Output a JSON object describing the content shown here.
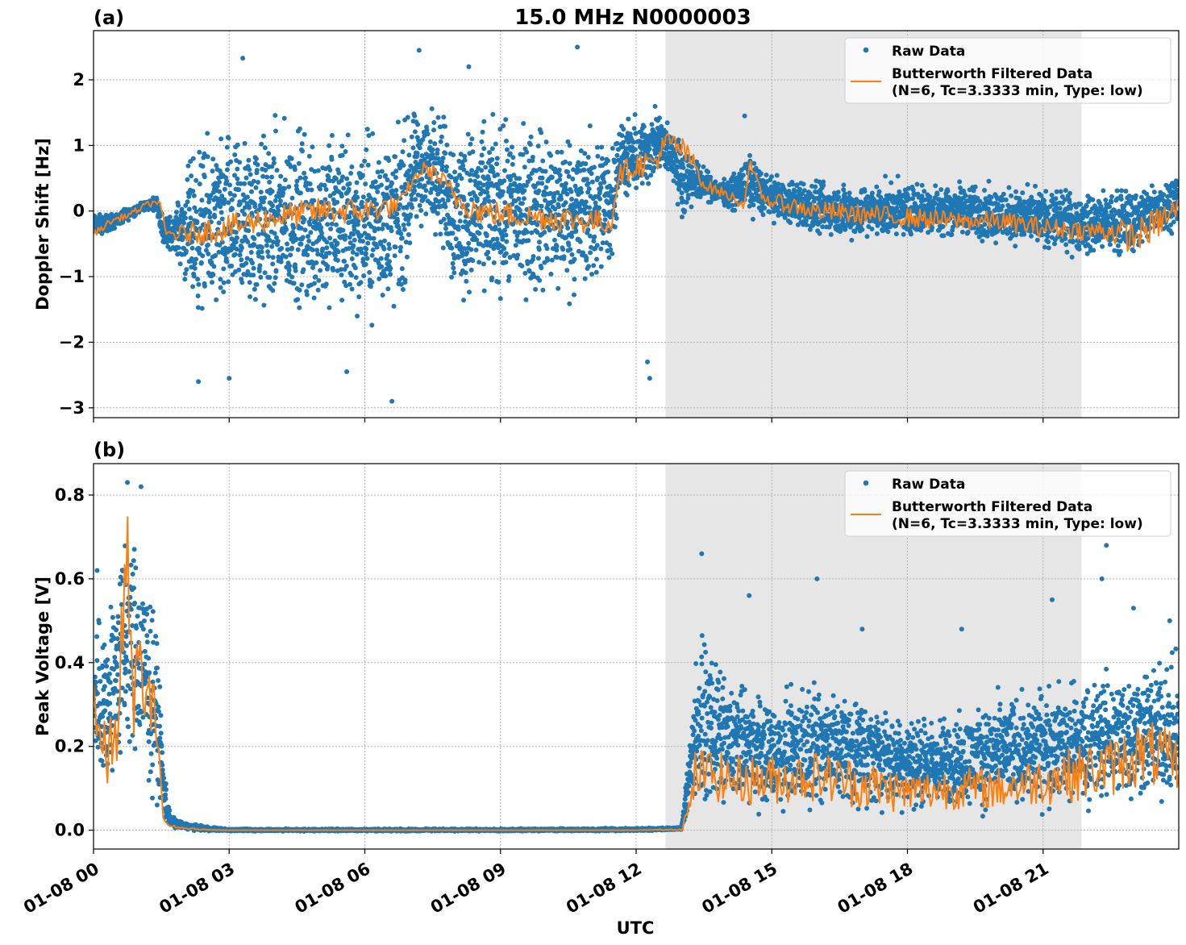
{
  "figure_title": "15.0 MHz N0000003",
  "xlabel": "UTC",
  "x_tick_labels": [
    "01-08 00",
    "01-08 03",
    "01-08 06",
    "01-08 09",
    "01-08 12",
    "01-08 15",
    "01-08 18",
    "01-08 21"
  ],
  "colors": {
    "raw": "#1f77b4",
    "filtered": "#ff7f0e",
    "shade": "#e6e6e6",
    "grid": "#b0b0b0"
  },
  "legend": {
    "raw_label": "Raw Data",
    "filtered_label_line1": "Butterworth Filtered Data",
    "filtered_label_line2": "(N=6, Tc=3.3333 min, Type: low)",
    "placement": "top-right"
  },
  "chart_data": [
    {
      "type": "scatter",
      "panel_label": "(a)",
      "ylabel": "Doppler Shift [Hz]",
      "xlim_hours": [
        0,
        24
      ],
      "ylim": [
        -3.15,
        2.75
      ],
      "y_ticks": [
        -3,
        -2,
        -1,
        0,
        1,
        2
      ],
      "y_tick_labels": [
        "−3",
        "−2",
        "−1",
        "0",
        "1",
        "2"
      ],
      "grid": true,
      "shaded_region_hours": [
        12.65,
        21.85
      ],
      "series": [
        {
          "name": "Raw Data",
          "style": "points",
          "envelope_hours": [
            0,
            0.5,
            1.0,
            1.4,
            1.55,
            1.8,
            2.2,
            3.0,
            4.0,
            5.0,
            6.0,
            6.8,
            7.1,
            7.6,
            8.0,
            8.5,
            9.0,
            10.0,
            11.0,
            11.45,
            11.6,
            12.0,
            12.5,
            12.85,
            13.0,
            13.3,
            13.5,
            14.0,
            14.5,
            15.0,
            16.0,
            17.0,
            18.0,
            19.0,
            20.0,
            21.0,
            22.0,
            23.0,
            24.0
          ],
          "envelope_low": [
            -0.45,
            -0.3,
            -0.05,
            0.0,
            -0.7,
            -0.65,
            -1.9,
            -2.1,
            -2.0,
            -2.0,
            -2.0,
            -1.9,
            -0.6,
            -0.5,
            -1.8,
            -1.7,
            -1.7,
            -1.7,
            -1.6,
            -1.3,
            0.0,
            0.0,
            0.4,
            0.3,
            -0.3,
            0.0,
            0.1,
            0.0,
            -0.15,
            -0.2,
            -0.5,
            -0.55,
            -0.5,
            -0.5,
            -0.6,
            -0.7,
            -0.8,
            -0.8,
            -0.3
          ],
          "envelope_high": [
            0.0,
            0.0,
            0.15,
            0.25,
            0.0,
            0.05,
            1.3,
            1.6,
            1.7,
            1.7,
            1.6,
            1.7,
            1.8,
            1.9,
            1.7,
            1.7,
            1.7,
            1.7,
            1.6,
            1.4,
            1.5,
            1.6,
            1.7,
            1.3,
            1.3,
            0.95,
            0.7,
            0.5,
            1.0,
            0.6,
            0.55,
            0.55,
            0.55,
            0.55,
            0.5,
            0.45,
            0.4,
            0.5,
            0.7
          ],
          "outliers": [
            {
              "x": 2.32,
              "y": -2.6
            },
            {
              "x": 3.3,
              "y": 2.33
            },
            {
              "x": 6.6,
              "y": -2.9
            },
            {
              "x": 7.2,
              "y": 2.45
            },
            {
              "x": 8.3,
              "y": 2.2
            },
            {
              "x": 10.7,
              "y": 2.5
            },
            {
              "x": 12.3,
              "y": -2.55
            },
            {
              "x": 12.25,
              "y": -2.3
            },
            {
              "x": 14.4,
              "y": 1.45
            },
            {
              "x": 3.0,
              "y": -2.55
            },
            {
              "x": 5.6,
              "y": -2.45
            }
          ]
        },
        {
          "name": "Butterworth Filtered Data\n(N=6, Tc=3.3333 min, Type: low)",
          "style": "line",
          "anchor_hours": [
            0,
            0.4,
            0.8,
            1.2,
            1.45,
            1.6,
            2.0,
            2.5,
            3.0,
            4.0,
            5.0,
            6.0,
            6.8,
            7.0,
            7.3,
            7.6,
            8.0,
            8.5,
            9.0,
            10.0,
            11.0,
            11.45,
            11.6,
            12.0,
            12.4,
            12.7,
            13.0,
            13.3,
            13.5,
            14.0,
            14.4,
            14.5,
            14.8,
            15.0,
            16.0,
            17.0,
            18.0,
            19.0,
            20.0,
            21.0,
            22.0,
            22.5,
            23.0,
            23.5,
            24.0
          ],
          "anchor_values": [
            -0.35,
            -0.15,
            -0.05,
            0.1,
            0.15,
            -0.35,
            -0.35,
            -0.3,
            -0.25,
            -0.1,
            0.0,
            0.0,
            0.1,
            0.4,
            0.65,
            0.55,
            0.2,
            0.0,
            -0.05,
            -0.1,
            -0.15,
            -0.2,
            0.55,
            0.7,
            0.75,
            1.05,
            0.95,
            0.7,
            0.4,
            0.25,
            0.1,
            0.75,
            0.2,
            0.15,
            0.0,
            -0.05,
            -0.1,
            -0.15,
            -0.15,
            -0.25,
            -0.3,
            -0.3,
            -0.4,
            -0.2,
            0.05
          ],
          "noise_amplitude": [
            0.05,
            0.05,
            0.05,
            0.05,
            0.05,
            0.1,
            0.15,
            0.2,
            0.2,
            0.2,
            0.2,
            0.2,
            0.15,
            0.1,
            0.1,
            0.15,
            0.2,
            0.2,
            0.2,
            0.2,
            0.2,
            0.15,
            0.15,
            0.2,
            0.2,
            0.2,
            0.2,
            0.15,
            0.1,
            0.08,
            0.08,
            0.08,
            0.08,
            0.12,
            0.15,
            0.15,
            0.15,
            0.15,
            0.15,
            0.15,
            0.15,
            0.2,
            0.25,
            0.25,
            0.2
          ]
        }
      ]
    },
    {
      "type": "scatter",
      "panel_label": "(b)",
      "ylabel": "Peak Voltage [V]",
      "xlim_hours": [
        0,
        24
      ],
      "ylim": [
        -0.045,
        0.875
      ],
      "y_ticks": [
        0.0,
        0.2,
        0.4,
        0.6,
        0.8
      ],
      "y_tick_labels": [
        "0.0",
        "0.2",
        "0.4",
        "0.6",
        "0.8"
      ],
      "grid": true,
      "shaded_region_hours": [
        12.65,
        21.85
      ],
      "series": [
        {
          "name": "Raw Data",
          "style": "points",
          "envelope_hours": [
            0,
            0.1,
            0.3,
            0.5,
            0.7,
            0.8,
            1.0,
            1.2,
            1.4,
            1.55,
            1.7,
            2.0,
            2.5,
            3.0,
            6.0,
            9.0,
            12.0,
            13.0,
            13.2,
            13.3,
            13.5,
            14.0,
            15.0,
            16.0,
            17.0,
            18.0,
            19.0,
            20.0,
            21.0,
            22.0,
            23.0,
            24.0
          ],
          "envelope_low": [
            0.05,
            0.05,
            0.05,
            0.05,
            0.05,
            0.1,
            0.05,
            0.05,
            0.03,
            0.0,
            0.0,
            0.0,
            -0.003,
            -0.003,
            -0.003,
            -0.003,
            -0.003,
            0.0,
            0.01,
            0.03,
            0.02,
            0.02,
            0.02,
            0.02,
            0.02,
            0.02,
            0.02,
            0.02,
            0.02,
            0.02,
            0.02,
            0.02
          ],
          "envelope_high": [
            0.55,
            0.6,
            0.55,
            0.7,
            0.82,
            0.8,
            0.75,
            0.65,
            0.55,
            0.2,
            0.04,
            0.02,
            0.01,
            0.004,
            0.004,
            0.004,
            0.006,
            0.008,
            0.3,
            0.45,
            0.5,
            0.4,
            0.35,
            0.4,
            0.35,
            0.3,
            0.3,
            0.35,
            0.38,
            0.4,
            0.45,
            0.45
          ],
          "outliers": [
            {
              "x": 0.08,
              "y": 0.62
            },
            {
              "x": 0.75,
              "y": 0.83
            },
            {
              "x": 1.05,
              "y": 0.82
            },
            {
              "x": 13.45,
              "y": 0.66
            },
            {
              "x": 14.5,
              "y": 0.56
            },
            {
              "x": 16.0,
              "y": 0.6
            },
            {
              "x": 17.0,
              "y": 0.48
            },
            {
              "x": 19.2,
              "y": 0.48
            },
            {
              "x": 21.2,
              "y": 0.55
            },
            {
              "x": 22.3,
              "y": 0.6
            },
            {
              "x": 22.4,
              "y": 0.68
            },
            {
              "x": 23.0,
              "y": 0.53
            },
            {
              "x": 23.8,
              "y": 0.5
            }
          ]
        },
        {
          "name": "Butterworth Filtered Data\n(N=6, Tc=3.3333 min, Type: low)",
          "style": "line",
          "anchor_hours": [
            0,
            0.15,
            0.3,
            0.5,
            0.65,
            0.75,
            0.85,
            1.0,
            1.2,
            1.4,
            1.55,
            1.7,
            2.0,
            2.5,
            3.0,
            6.0,
            9.0,
            12.0,
            13.0,
            13.2,
            13.3,
            13.5,
            14.0,
            15.0,
            16.0,
            17.0,
            18.0,
            19.0,
            20.0,
            21.0,
            22.0,
            22.5,
            23.0,
            23.5,
            24.0
          ],
          "anchor_values": [
            0.33,
            0.2,
            0.17,
            0.22,
            0.5,
            0.65,
            0.3,
            0.4,
            0.3,
            0.27,
            0.02,
            0.01,
            0.005,
            0.001,
            0.0,
            0.0,
            0.0,
            0.0,
            0.002,
            0.05,
            0.13,
            0.14,
            0.12,
            0.12,
            0.13,
            0.11,
            0.09,
            0.1,
            0.1,
            0.12,
            0.14,
            0.15,
            0.18,
            0.18,
            0.15
          ],
          "noise_amplitude": [
            0.08,
            0.08,
            0.08,
            0.1,
            0.12,
            0.12,
            0.1,
            0.1,
            0.1,
            0.06,
            0.005,
            0.003,
            0.002,
            0.001,
            0.0,
            0.0,
            0.0,
            0.0,
            0.002,
            0.05,
            0.06,
            0.06,
            0.06,
            0.06,
            0.06,
            0.06,
            0.05,
            0.05,
            0.05,
            0.06,
            0.07,
            0.07,
            0.08,
            0.08,
            0.07
          ]
        }
      ]
    }
  ]
}
